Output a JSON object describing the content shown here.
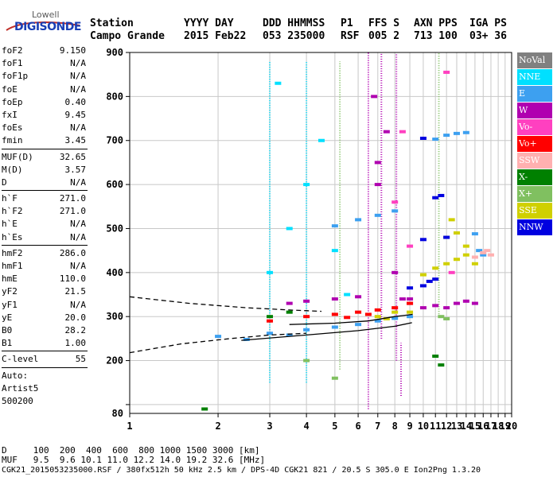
{
  "logo": {
    "line1": "Lowell",
    "line2": "DIGISONDE"
  },
  "header": {
    "labels": [
      "Station",
      "YYYY DAY",
      "DDD HHMMSS",
      "P1",
      "FFS S",
      "AXN PPS",
      "IGA PS"
    ],
    "values": [
      "Campo Grande",
      "2015 Feb22",
      "053 235000",
      "RSF",
      "005 2",
      "713 100",
      "03+ 36"
    ]
  },
  "params": {
    "group1": [
      {
        "name": "foF2",
        "value": "9.150"
      },
      {
        "name": "foF1",
        "value": "N/A"
      },
      {
        "name": "foF1p",
        "value": "N/A"
      },
      {
        "name": "foE",
        "value": "N/A"
      },
      {
        "name": "foEp",
        "value": "0.40"
      },
      {
        "name": "fxI",
        "value": "9.45"
      },
      {
        "name": "foEs",
        "value": "N/A"
      },
      {
        "name": "fmin",
        "value": "3.45"
      }
    ],
    "group2": [
      {
        "name": "MUF(D)",
        "value": "32.65"
      },
      {
        "name": "M(D)",
        "value": "3.57"
      },
      {
        "name": "D",
        "value": "N/A"
      }
    ],
    "group3": [
      {
        "name": "h`F",
        "value": "271.0"
      },
      {
        "name": "h`F2",
        "value": "271.0"
      },
      {
        "name": "h`E",
        "value": "N/A"
      },
      {
        "name": "h`Es",
        "value": "N/A"
      }
    ],
    "group4": [
      {
        "name": "hmF2",
        "value": "286.0"
      },
      {
        "name": "hmF1",
        "value": "N/A"
      },
      {
        "name": "hmE",
        "value": "110.0"
      },
      {
        "name": "yF2",
        "value": "21.5"
      },
      {
        "name": "yF1",
        "value": "N/A"
      },
      {
        "name": "yE",
        "value": "20.0"
      },
      {
        "name": "B0",
        "value": "28.2"
      },
      {
        "name": "B1",
        "value": "1.00"
      }
    ],
    "group5": [
      {
        "name": "C-level",
        "value": "55"
      }
    ],
    "auto": [
      "Auto:",
      "Artist5",
      "500200"
    ]
  },
  "legend": [
    {
      "label": "NoVal",
      "color": "#808080"
    },
    {
      "label": "NNE",
      "color": "#00e0ff"
    },
    {
      "label": "E",
      "color": "#3da0f0"
    },
    {
      "label": "W",
      "color": "#b000b0"
    },
    {
      "label": "Vo-",
      "color": "#ff40c0"
    },
    {
      "label": "Vo+",
      "color": "#ff0000"
    },
    {
      "label": "SSW",
      "color": "#ffb0b0"
    },
    {
      "label": "X-",
      "color": "#008000"
    },
    {
      "label": "X+",
      "color": "#80c060"
    },
    {
      "label": "SSE",
      "color": "#d0d000"
    },
    {
      "label": "NNW",
      "color": "#0000e0"
    }
  ],
  "footer": {
    "d_row": "D     100  200  400  600  800 1000 1500 3000 [km]",
    "muf_row": "MUF   9.5  9.6 10.1 11.0 12.2 14.0 19.2 32.6 [MHz]",
    "file_row": "CGK21_2015053235000.RSF / 380fx512h 50 kHz 2.5 km / DPS-4D CGK21 821 / 20.5 S 305.0 E Ion2Png 1.3.20"
  },
  "chart_data": {
    "type": "scatter",
    "title": "",
    "xlabel": "",
    "ylabel": "",
    "xscale": "log",
    "xlim": [
      1,
      20
    ],
    "ylim": [
      80,
      900
    ],
    "x_ticks": [
      1,
      2,
      3,
      4,
      5,
      6,
      7,
      8,
      9,
      10,
      11,
      12,
      13,
      14,
      15,
      16,
      17,
      18,
      19,
      20
    ],
    "y_ticks": [
      100,
      200,
      300,
      400,
      500,
      600,
      700,
      800,
      900
    ],
    "y_tick_labels": [
      "",
      "200",
      "300",
      "400",
      "500",
      "600",
      "700",
      "800",
      "900"
    ],
    "y_bottom_label": "80",
    "grid": true,
    "profile_curves": [
      {
        "name": "",
        "color": "#000000",
        "dash": "6,4",
        "points": [
          [
            1,
            345
          ],
          [
            1.6,
            330
          ],
          [
            2.5,
            320
          ],
          [
            3.5,
            315
          ],
          [
            4.5,
            312
          ]
        ]
      },
      {
        "name": "",
        "color": "#000000",
        "dash": "6,4",
        "points": [
          [
            1,
            218
          ],
          [
            1.5,
            238
          ],
          [
            2.2,
            250
          ],
          [
            3,
            258
          ],
          [
            4,
            262
          ]
        ]
      },
      {
        "name": "",
        "color": "#000000",
        "dash": "",
        "points": [
          [
            2.4,
            246
          ],
          [
            4,
            258
          ],
          [
            6,
            268
          ],
          [
            8,
            278
          ],
          [
            9.15,
            286
          ]
        ]
      },
      {
        "name": "",
        "color": "#000000",
        "dash": "",
        "points": [
          [
            3.5,
            282
          ],
          [
            5,
            285
          ],
          [
            6.5,
            290
          ],
          [
            8,
            300
          ],
          [
            9.2,
            305
          ]
        ]
      }
    ],
    "series": [
      {
        "color": "#3da0f0",
        "points": [
          [
            2,
            255
          ],
          [
            3,
            262
          ],
          [
            4,
            270
          ],
          [
            5,
            276
          ],
          [
            6,
            282
          ],
          [
            7,
            290
          ],
          [
            8,
            296
          ],
          [
            9,
            300
          ],
          [
            5,
            506
          ],
          [
            6,
            520
          ],
          [
            7,
            530
          ],
          [
            8,
            540
          ],
          [
            11,
            703
          ],
          [
            12,
            712
          ],
          [
            13,
            716
          ],
          [
            14,
            718
          ],
          [
            15,
            488
          ],
          [
            15.5,
            450
          ],
          [
            16,
            440
          ],
          [
            2.5,
            248
          ],
          [
            3.5,
            258
          ]
        ]
      },
      {
        "color": "#b000b0",
        "points": [
          [
            3.5,
            330
          ],
          [
            4,
            335
          ],
          [
            5,
            340
          ],
          [
            6,
            345
          ],
          [
            9,
            340
          ],
          [
            10,
            320
          ],
          [
            11,
            325
          ],
          [
            12,
            320
          ],
          [
            13,
            330
          ],
          [
            14,
            335
          ],
          [
            15,
            330
          ],
          [
            7,
            600
          ],
          [
            7,
            650
          ],
          [
            7.5,
            720
          ],
          [
            6.8,
            800
          ],
          [
            8,
            400
          ],
          [
            8.5,
            340
          ],
          [
            9,
            330
          ]
        ]
      },
      {
        "color": "#d0d000",
        "points": [
          [
            7,
            300
          ],
          [
            8,
            310
          ],
          [
            9,
            310
          ],
          [
            10,
            395
          ],
          [
            11,
            410
          ],
          [
            12,
            420
          ],
          [
            13,
            430
          ],
          [
            14,
            440
          ],
          [
            12,
            480
          ],
          [
            13,
            490
          ],
          [
            14,
            460
          ],
          [
            12.5,
            520
          ],
          [
            15,
            420
          ],
          [
            7.5,
            295
          ]
        ]
      },
      {
        "color": "#0000e0",
        "points": [
          [
            10,
            370
          ],
          [
            10.5,
            380
          ],
          [
            11,
            385
          ],
          [
            9,
            365
          ],
          [
            11,
            570
          ],
          [
            11.5,
            575
          ],
          [
            10,
            705
          ],
          [
            12,
            480
          ],
          [
            10,
            475
          ]
        ]
      },
      {
        "color": "#ff0000",
        "points": [
          [
            3,
            290
          ],
          [
            4,
            300
          ],
          [
            5,
            305
          ],
          [
            6,
            310
          ],
          [
            7,
            315
          ],
          [
            8,
            320
          ],
          [
            9,
            330
          ],
          [
            5.5,
            298
          ],
          [
            6.5,
            305
          ]
        ]
      },
      {
        "color": "#00e0ff",
        "points": [
          [
            3,
            400
          ],
          [
            3.5,
            500
          ],
          [
            4,
            600
          ],
          [
            4.5,
            700
          ],
          [
            3.2,
            830
          ],
          [
            5,
            450
          ],
          [
            5.5,
            350
          ]
        ]
      },
      {
        "color": "#ff40c0",
        "points": [
          [
            8,
            560
          ],
          [
            8.5,
            720
          ],
          [
            12,
            855
          ],
          [
            12.5,
            400
          ],
          [
            9,
            460
          ]
        ]
      },
      {
        "color": "#008000",
        "points": [
          [
            3,
            300
          ],
          [
            3.5,
            310
          ],
          [
            11,
            210
          ],
          [
            11.5,
            190
          ],
          [
            1.8,
            90
          ]
        ]
      },
      {
        "color": "#80c060",
        "points": [
          [
            4,
            200
          ],
          [
            5,
            160
          ],
          [
            11.5,
            300
          ],
          [
            12,
            295
          ]
        ]
      },
      {
        "color": "#ffb0b0",
        "points": [
          [
            15,
            435
          ],
          [
            16,
            445
          ],
          [
            16.5,
            450
          ],
          [
            17,
            440
          ]
        ]
      }
    ],
    "vertical_streaks": [
      {
        "x": 3,
        "ymin": 150,
        "ymax": 880,
        "color": "#00e0ff"
      },
      {
        "x": 4,
        "ymin": 150,
        "ymax": 880,
        "color": "#00e0ff"
      },
      {
        "x": 5.2,
        "ymin": 180,
        "ymax": 880,
        "color": "#80c060"
      },
      {
        "x": 6.5,
        "ymin": 90,
        "ymax": 900,
        "color": "#b000b0"
      },
      {
        "x": 7.2,
        "ymin": 250,
        "ymax": 900,
        "color": "#b000b0"
      },
      {
        "x": 8.1,
        "ymin": 200,
        "ymax": 900,
        "color": "#b000b0"
      },
      {
        "x": 8.4,
        "ymin": 120,
        "ymax": 240,
        "color": "#b000b0"
      },
      {
        "x": 11.3,
        "ymin": 300,
        "ymax": 900,
        "color": "#80c060"
      }
    ]
  }
}
